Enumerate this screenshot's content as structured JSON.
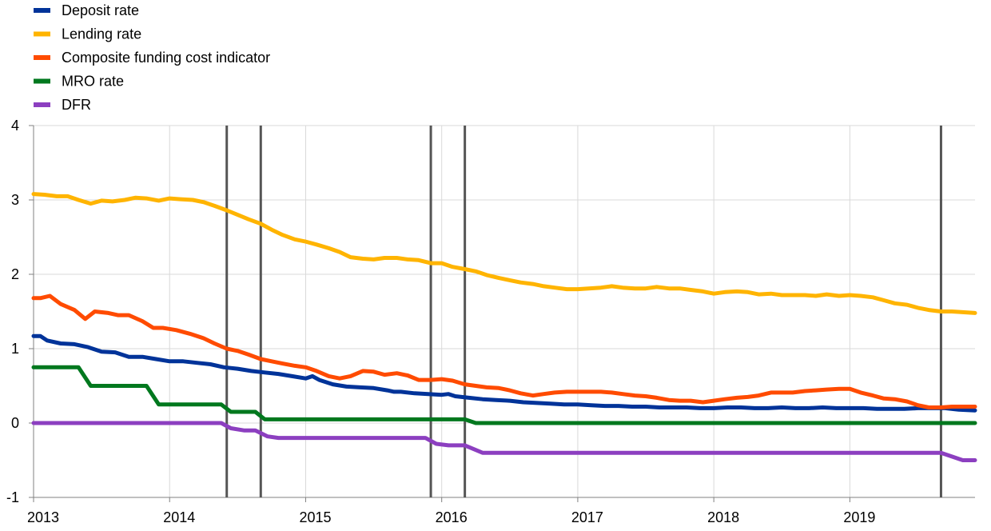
{
  "chart_data": {
    "type": "line",
    "title": "",
    "xlabel": "",
    "ylabel": "",
    "xlim": [
      2013.0,
      2019.92
    ],
    "ylim": [
      -1,
      4
    ],
    "y_ticks": [
      -1,
      0,
      1,
      2,
      3,
      4
    ],
    "y_tick_labels": [
      "-1",
      "0",
      "1",
      "2",
      "3",
      "4"
    ],
    "x_ticks": [
      2013,
      2014,
      2015,
      2016,
      2017,
      2018,
      2019
    ],
    "x_tick_labels": [
      "2013",
      "2014",
      "2015",
      "2016",
      "2017",
      "2018",
      "2019"
    ],
    "grid": true,
    "legend_position": "top-left",
    "vertical_markers": [
      2014.42,
      2014.67,
      2015.92,
      2016.17,
      2019.67
    ],
    "series": [
      {
        "name": "Deposit rate",
        "color": "#003399",
        "points": [
          [
            2013.0,
            1.17
          ],
          [
            2013.05,
            1.17
          ],
          [
            2013.1,
            1.11
          ],
          [
            2013.2,
            1.07
          ],
          [
            2013.3,
            1.06
          ],
          [
            2013.4,
            1.02
          ],
          [
            2013.5,
            0.96
          ],
          [
            2013.6,
            0.95
          ],
          [
            2013.7,
            0.89
          ],
          [
            2013.8,
            0.89
          ],
          [
            2013.9,
            0.86
          ],
          [
            2014.0,
            0.83
          ],
          [
            2014.1,
            0.83
          ],
          [
            2014.2,
            0.81
          ],
          [
            2014.3,
            0.79
          ],
          [
            2014.4,
            0.75
          ],
          [
            2014.5,
            0.73
          ],
          [
            2014.6,
            0.7
          ],
          [
            2014.7,
            0.68
          ],
          [
            2014.8,
            0.66
          ],
          [
            2014.9,
            0.63
          ],
          [
            2015.0,
            0.6
          ],
          [
            2015.05,
            0.63
          ],
          [
            2015.1,
            0.58
          ],
          [
            2015.2,
            0.52
          ],
          [
            2015.3,
            0.49
          ],
          [
            2015.4,
            0.48
          ],
          [
            2015.5,
            0.47
          ],
          [
            2015.6,
            0.44
          ],
          [
            2015.65,
            0.42
          ],
          [
            2015.7,
            0.42
          ],
          [
            2015.8,
            0.4
          ],
          [
            2015.9,
            0.39
          ],
          [
            2016.0,
            0.38
          ],
          [
            2016.05,
            0.39
          ],
          [
            2016.1,
            0.36
          ],
          [
            2016.2,
            0.34
          ],
          [
            2016.3,
            0.32
          ],
          [
            2016.4,
            0.31
          ],
          [
            2016.5,
            0.3
          ],
          [
            2016.6,
            0.28
          ],
          [
            2016.7,
            0.27
          ],
          [
            2016.8,
            0.26
          ],
          [
            2016.9,
            0.25
          ],
          [
            2017.0,
            0.25
          ],
          [
            2017.1,
            0.24
          ],
          [
            2017.2,
            0.23
          ],
          [
            2017.3,
            0.23
          ],
          [
            2017.4,
            0.22
          ],
          [
            2017.5,
            0.22
          ],
          [
            2017.6,
            0.21
          ],
          [
            2017.7,
            0.21
          ],
          [
            2017.8,
            0.21
          ],
          [
            2017.9,
            0.2
          ],
          [
            2018.0,
            0.2
          ],
          [
            2018.1,
            0.21
          ],
          [
            2018.2,
            0.21
          ],
          [
            2018.3,
            0.2
          ],
          [
            2018.4,
            0.2
          ],
          [
            2018.5,
            0.21
          ],
          [
            2018.6,
            0.2
          ],
          [
            2018.7,
            0.2
          ],
          [
            2018.8,
            0.21
          ],
          [
            2018.9,
            0.2
          ],
          [
            2019.0,
            0.2
          ],
          [
            2019.1,
            0.2
          ],
          [
            2019.2,
            0.19
          ],
          [
            2019.3,
            0.19
          ],
          [
            2019.4,
            0.19
          ],
          [
            2019.5,
            0.2
          ],
          [
            2019.6,
            0.2
          ],
          [
            2019.7,
            0.2
          ],
          [
            2019.8,
            0.18
          ],
          [
            2019.92,
            0.17
          ]
        ]
      },
      {
        "name": "Lending rate",
        "color": "#FFB400",
        "points": [
          [
            2013.0,
            3.08
          ],
          [
            2013.08,
            3.07
          ],
          [
            2013.17,
            3.05
          ],
          [
            2013.25,
            3.05
          ],
          [
            2013.33,
            3.0
          ],
          [
            2013.42,
            2.95
          ],
          [
            2013.5,
            2.99
          ],
          [
            2013.58,
            2.98
          ],
          [
            2013.67,
            3.0
          ],
          [
            2013.75,
            3.03
          ],
          [
            2013.83,
            3.02
          ],
          [
            2013.92,
            2.99
          ],
          [
            2014.0,
            3.02
          ],
          [
            2014.08,
            3.01
          ],
          [
            2014.17,
            3.0
          ],
          [
            2014.25,
            2.97
          ],
          [
            2014.33,
            2.92
          ],
          [
            2014.42,
            2.86
          ],
          [
            2014.5,
            2.8
          ],
          [
            2014.58,
            2.74
          ],
          [
            2014.67,
            2.68
          ],
          [
            2014.75,
            2.6
          ],
          [
            2014.83,
            2.53
          ],
          [
            2014.92,
            2.47
          ],
          [
            2015.0,
            2.44
          ],
          [
            2015.08,
            2.4
          ],
          [
            2015.17,
            2.35
          ],
          [
            2015.25,
            2.3
          ],
          [
            2015.33,
            2.23
          ],
          [
            2015.42,
            2.21
          ],
          [
            2015.5,
            2.2
          ],
          [
            2015.58,
            2.22
          ],
          [
            2015.67,
            2.22
          ],
          [
            2015.75,
            2.2
          ],
          [
            2015.83,
            2.19
          ],
          [
            2015.92,
            2.15
          ],
          [
            2016.0,
            2.15
          ],
          [
            2016.08,
            2.1
          ],
          [
            2016.17,
            2.07
          ],
          [
            2016.25,
            2.04
          ],
          [
            2016.33,
            1.99
          ],
          [
            2016.42,
            1.95
          ],
          [
            2016.5,
            1.92
          ],
          [
            2016.58,
            1.89
          ],
          [
            2016.67,
            1.87
          ],
          [
            2016.75,
            1.84
          ],
          [
            2016.83,
            1.82
          ],
          [
            2016.92,
            1.8
          ],
          [
            2017.0,
            1.8
          ],
          [
            2017.08,
            1.81
          ],
          [
            2017.17,
            1.82
          ],
          [
            2017.25,
            1.84
          ],
          [
            2017.33,
            1.82
          ],
          [
            2017.42,
            1.81
          ],
          [
            2017.5,
            1.81
          ],
          [
            2017.58,
            1.83
          ],
          [
            2017.67,
            1.81
          ],
          [
            2017.75,
            1.81
          ],
          [
            2017.83,
            1.79
          ],
          [
            2017.92,
            1.77
          ],
          [
            2018.0,
            1.74
          ],
          [
            2018.08,
            1.76
          ],
          [
            2018.17,
            1.77
          ],
          [
            2018.25,
            1.76
          ],
          [
            2018.33,
            1.73
          ],
          [
            2018.42,
            1.74
          ],
          [
            2018.5,
            1.72
          ],
          [
            2018.58,
            1.72
          ],
          [
            2018.67,
            1.72
          ],
          [
            2018.75,
            1.71
          ],
          [
            2018.83,
            1.73
          ],
          [
            2018.92,
            1.71
          ],
          [
            2019.0,
            1.72
          ],
          [
            2019.08,
            1.71
          ],
          [
            2019.17,
            1.69
          ],
          [
            2019.25,
            1.65
          ],
          [
            2019.33,
            1.61
          ],
          [
            2019.42,
            1.59
          ],
          [
            2019.5,
            1.55
          ],
          [
            2019.58,
            1.52
          ],
          [
            2019.67,
            1.5
          ],
          [
            2019.75,
            1.5
          ],
          [
            2019.83,
            1.49
          ],
          [
            2019.92,
            1.48
          ]
        ]
      },
      {
        "name": "Composite funding cost indicator",
        "color": "#FF4B00",
        "points": [
          [
            2013.0,
            1.68
          ],
          [
            2013.05,
            1.68
          ],
          [
            2013.12,
            1.71
          ],
          [
            2013.2,
            1.6
          ],
          [
            2013.3,
            1.52
          ],
          [
            2013.38,
            1.4
          ],
          [
            2013.45,
            1.5
          ],
          [
            2013.55,
            1.48
          ],
          [
            2013.62,
            1.45
          ],
          [
            2013.7,
            1.45
          ],
          [
            2013.8,
            1.37
          ],
          [
            2013.88,
            1.28
          ],
          [
            2013.95,
            1.28
          ],
          [
            2014.05,
            1.25
          ],
          [
            2014.15,
            1.2
          ],
          [
            2014.25,
            1.14
          ],
          [
            2014.33,
            1.07
          ],
          [
            2014.42,
            1.0
          ],
          [
            2014.5,
            0.97
          ],
          [
            2014.58,
            0.92
          ],
          [
            2014.67,
            0.86
          ],
          [
            2014.75,
            0.83
          ],
          [
            2014.83,
            0.8
          ],
          [
            2014.92,
            0.77
          ],
          [
            2015.0,
            0.75
          ],
          [
            2015.08,
            0.7
          ],
          [
            2015.17,
            0.63
          ],
          [
            2015.25,
            0.6
          ],
          [
            2015.33,
            0.63
          ],
          [
            2015.42,
            0.7
          ],
          [
            2015.5,
            0.69
          ],
          [
            2015.58,
            0.65
          ],
          [
            2015.67,
            0.67
          ],
          [
            2015.75,
            0.64
          ],
          [
            2015.83,
            0.58
          ],
          [
            2015.92,
            0.58
          ],
          [
            2016.0,
            0.59
          ],
          [
            2016.08,
            0.57
          ],
          [
            2016.17,
            0.52
          ],
          [
            2016.25,
            0.5
          ],
          [
            2016.33,
            0.48
          ],
          [
            2016.42,
            0.47
          ],
          [
            2016.5,
            0.44
          ],
          [
            2016.58,
            0.4
          ],
          [
            2016.67,
            0.37
          ],
          [
            2016.75,
            0.39
          ],
          [
            2016.83,
            0.41
          ],
          [
            2016.92,
            0.42
          ],
          [
            2017.0,
            0.42
          ],
          [
            2017.08,
            0.42
          ],
          [
            2017.17,
            0.42
          ],
          [
            2017.25,
            0.41
          ],
          [
            2017.33,
            0.39
          ],
          [
            2017.42,
            0.37
          ],
          [
            2017.5,
            0.36
          ],
          [
            2017.58,
            0.34
          ],
          [
            2017.67,
            0.31
          ],
          [
            2017.75,
            0.3
          ],
          [
            2017.83,
            0.3
          ],
          [
            2017.92,
            0.28
          ],
          [
            2018.0,
            0.3
          ],
          [
            2018.08,
            0.32
          ],
          [
            2018.17,
            0.34
          ],
          [
            2018.25,
            0.35
          ],
          [
            2018.33,
            0.37
          ],
          [
            2018.42,
            0.41
          ],
          [
            2018.5,
            0.41
          ],
          [
            2018.58,
            0.41
          ],
          [
            2018.67,
            0.43
          ],
          [
            2018.75,
            0.44
          ],
          [
            2018.83,
            0.45
          ],
          [
            2018.92,
            0.46
          ],
          [
            2019.0,
            0.46
          ],
          [
            2019.08,
            0.41
          ],
          [
            2019.17,
            0.37
          ],
          [
            2019.25,
            0.33
          ],
          [
            2019.33,
            0.32
          ],
          [
            2019.42,
            0.29
          ],
          [
            2019.5,
            0.24
          ],
          [
            2019.58,
            0.21
          ],
          [
            2019.67,
            0.21
          ],
          [
            2019.75,
            0.22
          ],
          [
            2019.83,
            0.22
          ],
          [
            2019.92,
            0.22
          ]
        ]
      },
      {
        "name": "MRO rate",
        "color": "#00781E",
        "points": [
          [
            2013.0,
            0.75
          ],
          [
            2013.33,
            0.75
          ],
          [
            2013.42,
            0.5
          ],
          [
            2013.83,
            0.5
          ],
          [
            2013.92,
            0.25
          ],
          [
            2014.38,
            0.25
          ],
          [
            2014.45,
            0.15
          ],
          [
            2014.63,
            0.15
          ],
          [
            2014.7,
            0.05
          ],
          [
            2016.17,
            0.05
          ],
          [
            2016.25,
            0.0
          ],
          [
            2019.92,
            0.0
          ]
        ]
      },
      {
        "name": "DFR",
        "color": "#8C3FC0",
        "points": [
          [
            2013.0,
            0.0
          ],
          [
            2014.38,
            0.0
          ],
          [
            2014.45,
            -0.07
          ],
          [
            2014.55,
            -0.1
          ],
          [
            2014.63,
            -0.1
          ],
          [
            2014.72,
            -0.18
          ],
          [
            2014.8,
            -0.2
          ],
          [
            2015.88,
            -0.2
          ],
          [
            2015.96,
            -0.28
          ],
          [
            2016.05,
            -0.3
          ],
          [
            2016.17,
            -0.3
          ],
          [
            2016.3,
            -0.4
          ],
          [
            2019.67,
            -0.4
          ],
          [
            2019.75,
            -0.45
          ],
          [
            2019.83,
            -0.5
          ],
          [
            2019.92,
            -0.5
          ]
        ]
      }
    ]
  }
}
